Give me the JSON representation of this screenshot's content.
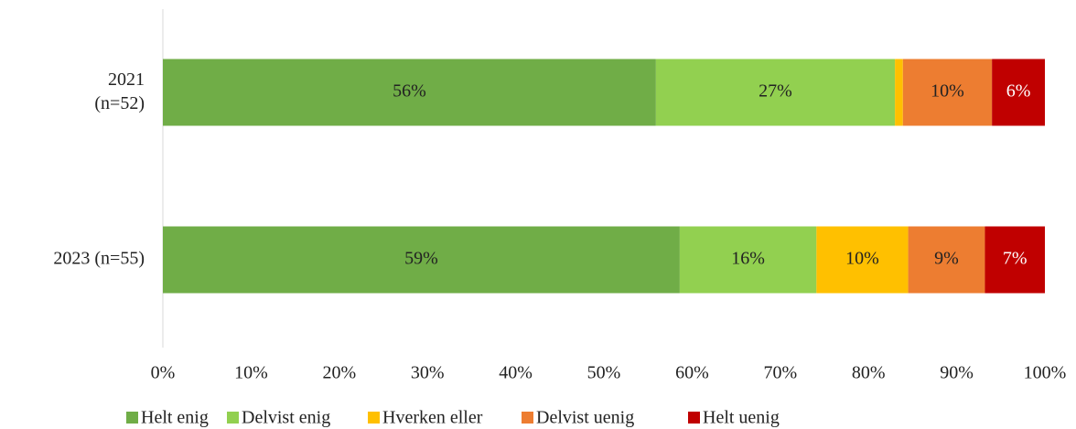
{
  "chart_data": {
    "type": "stacked-bar-horizontal",
    "categories": [
      "2021\n(n=52)",
      "2023 (n=55)"
    ],
    "series": [
      {
        "name": "Helt enig",
        "color": "#70ad47",
        "values": [
          55.9,
          58.6
        ],
        "value_labels": [
          "56%",
          "59%"
        ]
      },
      {
        "name": "Delvist enig",
        "color": "#92d050",
        "values": [
          27.1,
          15.5
        ],
        "value_labels": [
          "27%",
          "16%"
        ]
      },
      {
        "name": "Hverken eller",
        "color": "#ffc000",
        "values": [
          0.9,
          10.4
        ],
        "value_labels": [
          null,
          "10%"
        ]
      },
      {
        "name": "Delvist uenig",
        "color": "#ed7d31",
        "values": [
          10.1,
          8.7
        ],
        "value_labels": [
          "10%",
          "9%"
        ]
      },
      {
        "name": "Helt uenig",
        "color": "#c00000",
        "values": [
          6.0,
          6.8
        ],
        "value_labels": [
          "6%",
          "7%"
        ]
      }
    ],
    "xlim": [
      0,
      100
    ],
    "xticks": [
      {
        "value": 0,
        "label": "0%"
      },
      {
        "value": 10,
        "label": "10%"
      },
      {
        "value": 20,
        "label": "20%"
      },
      {
        "value": 30,
        "label": "30%"
      },
      {
        "value": 40,
        "label": "40%"
      },
      {
        "value": 50,
        "label": "50%"
      },
      {
        "value": 60,
        "label": "60%"
      },
      {
        "value": 70,
        "label": "70%"
      },
      {
        "value": 80,
        "label": "80%"
      },
      {
        "value": 90,
        "label": "90%"
      },
      {
        "value": 100,
        "label": "100%"
      }
    ],
    "legend": "bottom"
  }
}
